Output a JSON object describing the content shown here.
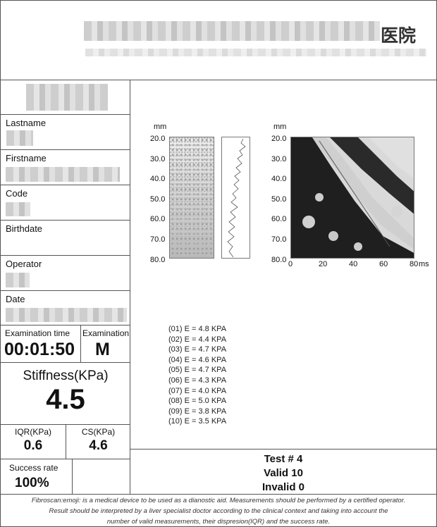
{
  "header": {
    "hospital_suffix": "医院"
  },
  "patient": {
    "lastname_label": "Lastname",
    "firstname_label": "Firstname",
    "code_label": "Code",
    "birthdate_label": "Birthdate",
    "operator_label": "Operator",
    "date_label": "Date"
  },
  "exam": {
    "time_label": "Examination time",
    "time_value": "00:01:50",
    "type_label": "Examination",
    "type_value": "M"
  },
  "results": {
    "stiffness_label": "Stiffness(KPa)",
    "stiffness_value": "4.5",
    "iqr_label": "IQR(KPa)",
    "iqr_value": "0.6",
    "cs_label": "CS(KPa)",
    "cs_value": "4.6",
    "success_label": "Success rate",
    "success_value": "100%"
  },
  "graphs": {
    "mm_label": "mm",
    "ms_label": "ms",
    "depth_ticks": [
      "20.0",
      "30.0",
      "40.0",
      "50.0",
      "60.0",
      "70.0",
      "80.0"
    ],
    "time_ticks": [
      "0",
      "20",
      "40",
      "60",
      "80"
    ]
  },
  "measurements": [
    "(01) E = 4.8 KPA",
    "(02) E = 4.4 KPA",
    "(03) E = 4.7 KPA",
    "(04) E = 4.6 KPA",
    "(05) E = 4.7 KPA",
    "(06) E = 4.3 KPA",
    "(07) E = 4.0 KPA",
    "(08) E = 5.0 KPA",
    "(09) E = 3.8 KPA",
    "(10) E = 3.5 KPA"
  ],
  "test": {
    "test_line": "Test # 4",
    "valid_line": "Valid 10",
    "invalid_line": "Invalid 0"
  },
  "footer": {
    "line1": "Fibroscan:emoji: is a medical device to be used as a dianostic aid. Measurements should be performed by a certified operator.",
    "line2": "Result should be interpreted by a liver specialist doctor according to the clinical context and taking into account the",
    "line3": "number of valid measurements, their dispresion(IQR) and the success rate."
  }
}
